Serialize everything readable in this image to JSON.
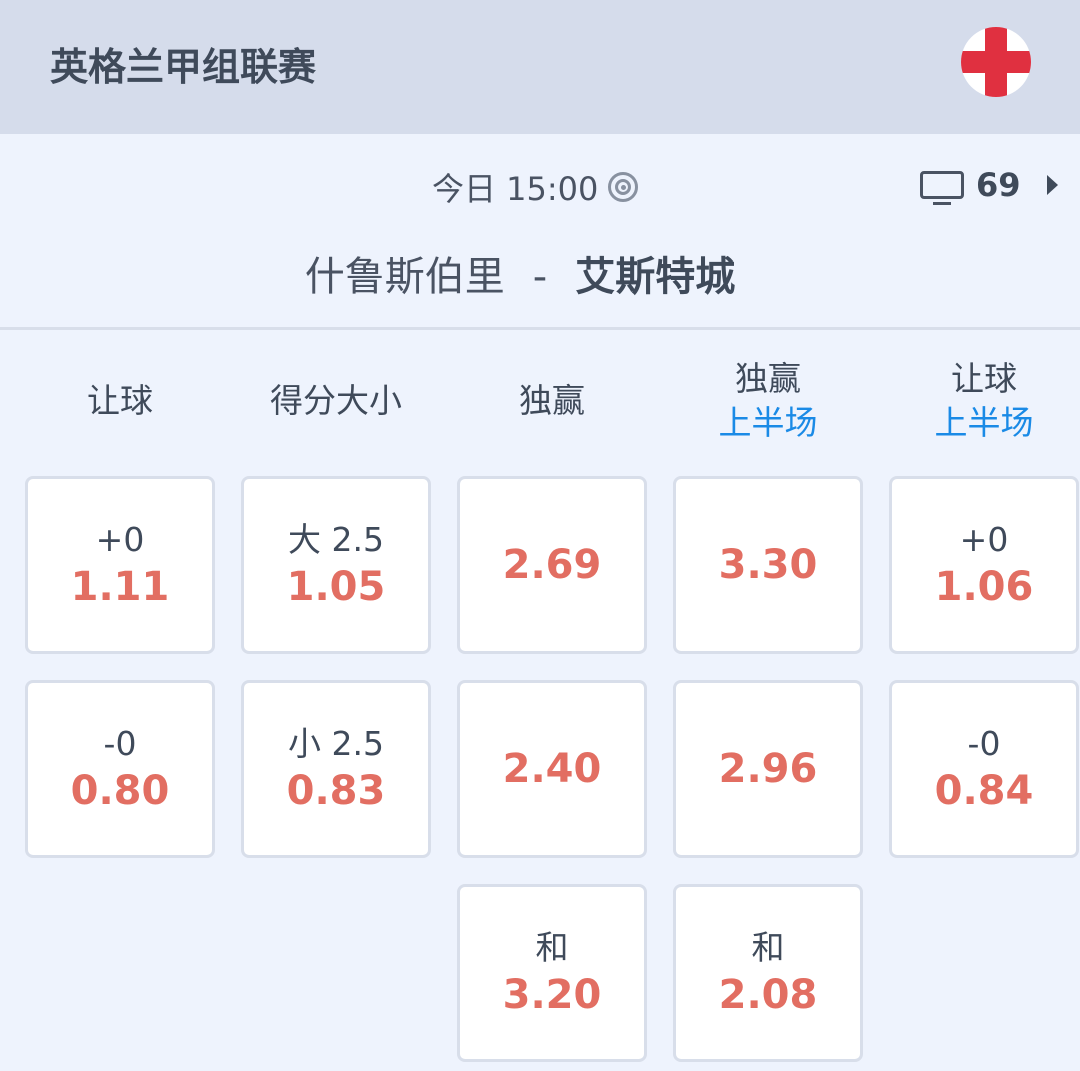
{
  "header": {
    "league": "英格兰甲组联赛",
    "flag_icon": "england-flag-icon"
  },
  "match": {
    "time": "今日 15:00",
    "live_icon": "live-target-icon",
    "tv_count": "69",
    "home": "什鲁斯伯里",
    "separator": "-",
    "away": "艾斯特城"
  },
  "colors": {
    "odds": "#e26e62",
    "accent": "#1a8ae6",
    "header_bg": "#d5dceb"
  },
  "columns": [
    {
      "title": "让球",
      "sub": "",
      "cells": [
        {
          "label": "+0",
          "odds": "1.11"
        },
        {
          "label": "-0",
          "odds": "0.80"
        }
      ]
    },
    {
      "title": "得分大小",
      "sub": "",
      "cells": [
        {
          "label": "大 2.5",
          "odds": "1.05"
        },
        {
          "label": "小 2.5",
          "odds": "0.83"
        }
      ]
    },
    {
      "title": "独赢",
      "sub": "",
      "cells": [
        {
          "label": "",
          "odds": "2.69"
        },
        {
          "label": "",
          "odds": "2.40"
        },
        {
          "label": "和",
          "odds": "3.20"
        }
      ]
    },
    {
      "title": "独赢",
      "sub": "上半场",
      "cells": [
        {
          "label": "",
          "odds": "3.30"
        },
        {
          "label": "",
          "odds": "2.96"
        },
        {
          "label": "和",
          "odds": "2.08"
        }
      ]
    },
    {
      "title": "让球",
      "sub": "上半场",
      "cells": [
        {
          "label": "+0",
          "odds": "1.06"
        },
        {
          "label": "-0",
          "odds": "0.84"
        }
      ]
    }
  ]
}
